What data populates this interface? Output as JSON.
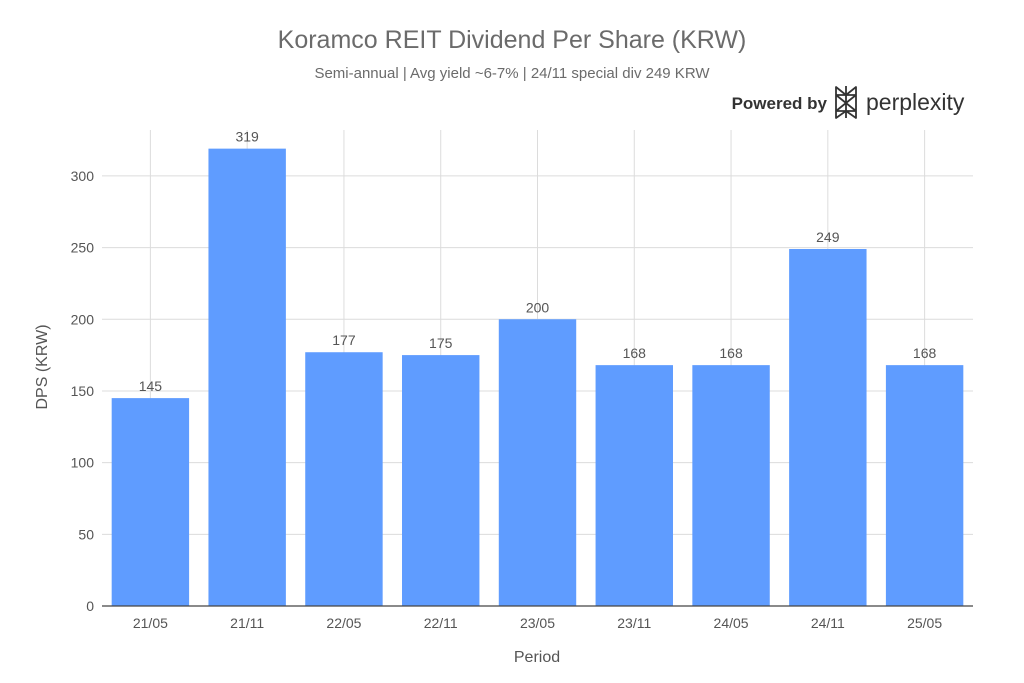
{
  "colors": {
    "bar": "#5f9cff",
    "grid": "#dcdcdc",
    "axis": "#444444",
    "text": "#555555",
    "title": "#6b6b6b",
    "brand": "#333333"
  },
  "branding": {
    "powered_by": "Powered by",
    "name": "perplexity",
    "logo_icon": "perplexity-logo-icon"
  },
  "chart_data": {
    "type": "bar",
    "title": "Koramco REIT Dividend Per Share (KRW)",
    "subtitle": "Semi-annual | Avg yield ~6-7% | 24/11 special div 249 KRW",
    "xlabel": "Period",
    "ylabel": "DPS (KRW)",
    "categories": [
      "21/05",
      "21/11",
      "22/05",
      "22/11",
      "23/05",
      "23/11",
      "24/05",
      "24/11",
      "25/05"
    ],
    "values": [
      145,
      319,
      177,
      175,
      200,
      168,
      168,
      249,
      168
    ],
    "ylim": [
      0,
      332
    ],
    "yticks": [
      0,
      50,
      100,
      150,
      200,
      250,
      300
    ],
    "grid": true,
    "legend": "none"
  }
}
